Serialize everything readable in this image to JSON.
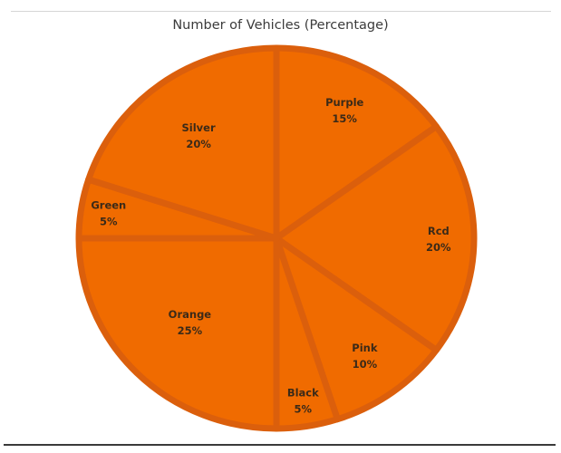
{
  "chart_data": {
    "type": "pie",
    "title": "Number of Vehicles (Percentage)",
    "categories": [
      "Purple",
      "Red",
      "Pink",
      "Black",
      "Orange",
      "Green",
      "Silver"
    ],
    "values": [
      15,
      20,
      10,
      5,
      25,
      5,
      20
    ],
    "labels": [
      {
        "name": "Purple",
        "pct": "15%"
      },
      {
        "name": "Rcd",
        "pct": "20%"
      },
      {
        "name": "Pink",
        "pct": "10%"
      },
      {
        "name": "Black",
        "pct": "5%"
      },
      {
        "name": "Orange",
        "pct": "25%"
      },
      {
        "name": "Green",
        "pct": "5%"
      },
      {
        "name": "Silver",
        "pct": "20%"
      }
    ],
    "slice_color": "#f06b00",
    "separator_color": "#db5f0c",
    "legend": "none"
  }
}
